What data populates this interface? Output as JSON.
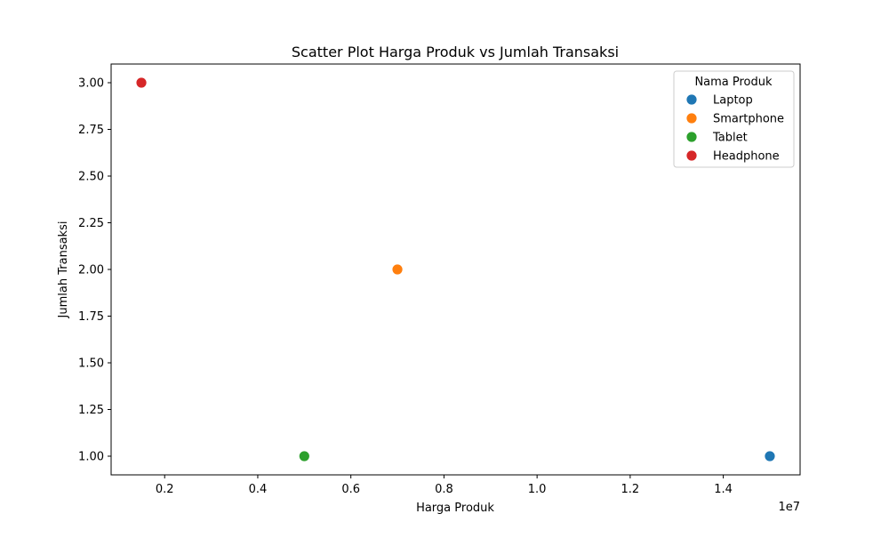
{
  "chart_data": {
    "type": "scatter",
    "title": "Scatter Plot Harga Produk vs Jumlah Transaksi",
    "xlabel": "Harga Produk",
    "ylabel": "Jumlah Transaksi",
    "x_offset_text": "1e7",
    "x_scale": 10000000,
    "xlim": [
      850000,
      15650000
    ],
    "ylim": [
      0.9,
      3.1
    ],
    "x_ticks": [
      2000000,
      4000000,
      6000000,
      8000000,
      10000000,
      12000000,
      14000000
    ],
    "x_tick_labels": [
      "0.2",
      "0.4",
      "0.6",
      "0.8",
      "1.0",
      "1.2",
      "1.4"
    ],
    "y_ticks": [
      1.0,
      1.25,
      1.5,
      1.75,
      2.0,
      2.25,
      2.5,
      2.75,
      3.0
    ],
    "y_tick_labels": [
      "1.00",
      "1.25",
      "1.50",
      "1.75",
      "2.00",
      "2.25",
      "2.50",
      "2.75",
      "3.00"
    ],
    "grid": false,
    "legend": {
      "title": "Nama Produk",
      "placement": "top-right"
    },
    "series": [
      {
        "name": "Laptop",
        "color": "#1f77b4",
        "points": [
          {
            "x": 15000000,
            "y": 1
          }
        ]
      },
      {
        "name": "Smartphone",
        "color": "#ff7f0e",
        "points": [
          {
            "x": 7000000,
            "y": 2
          }
        ]
      },
      {
        "name": "Tablet",
        "color": "#2ca02c",
        "points": [
          {
            "x": 5000000,
            "y": 1
          }
        ]
      },
      {
        "name": "Headphone",
        "color": "#d62728",
        "points": [
          {
            "x": 1500000,
            "y": 3
          }
        ]
      }
    ]
  }
}
